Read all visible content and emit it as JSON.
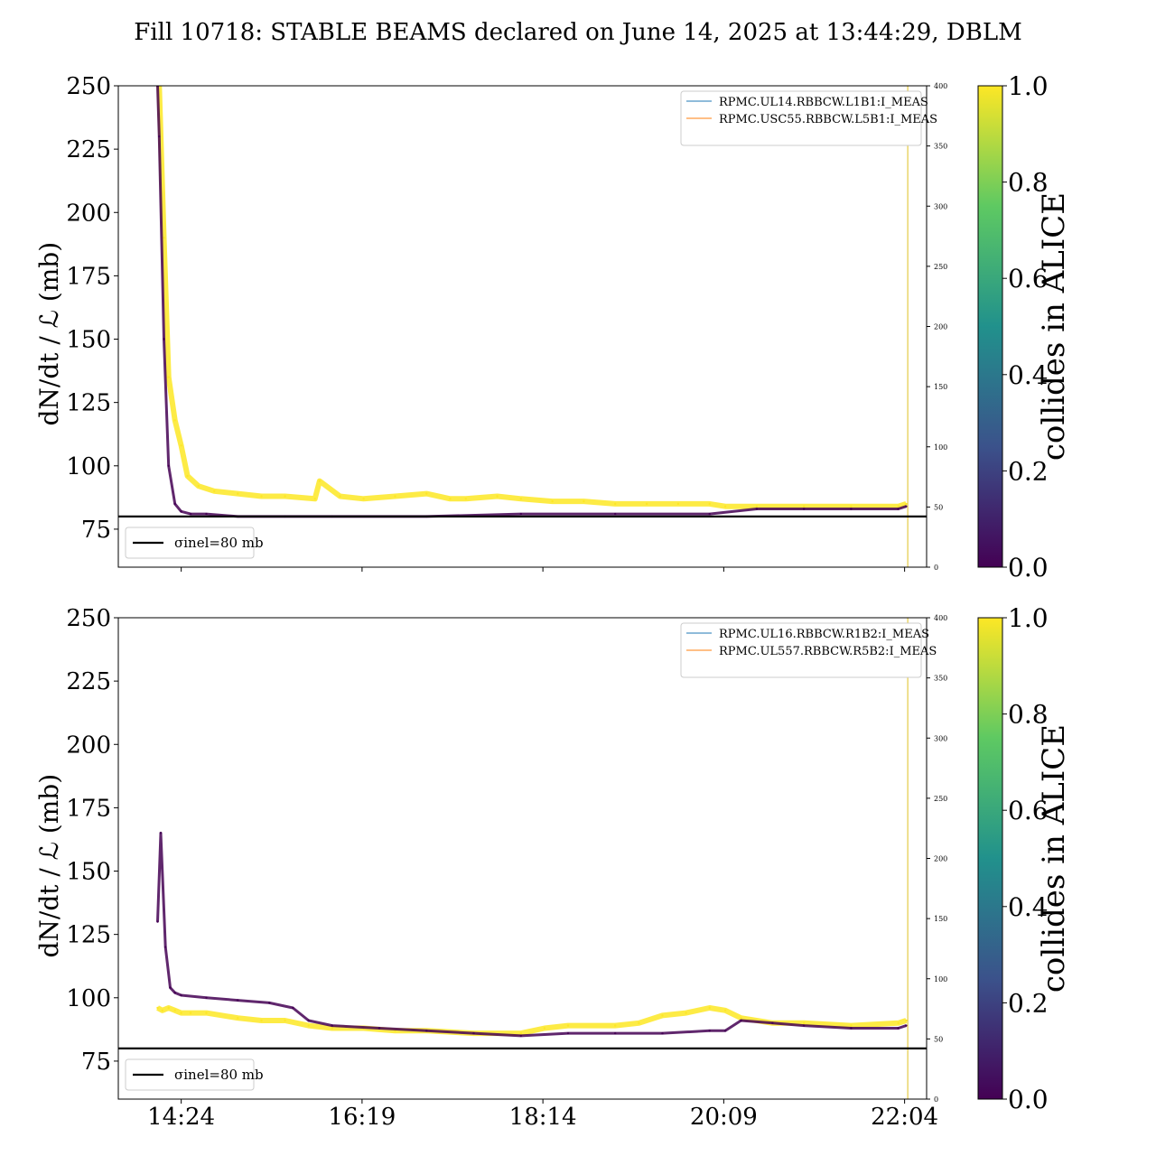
{
  "figure": {
    "title": "Fill 10718: STABLE BEAMS declared on June 14, 2025 at 13:44:29, DBLM"
  },
  "colorbar": {
    "label": "collides in ALICE",
    "ticks": [
      "0.0",
      "0.2",
      "0.4",
      "0.6",
      "0.8",
      "1.0"
    ],
    "colormap_stops": [
      "#440154",
      "#3b528b",
      "#21918c",
      "#5ec962",
      "#fde725"
    ]
  },
  "chart_data": [
    {
      "type": "line",
      "title": "",
      "ylabel": "dN/dt / ℒ (mb)",
      "ylim": [
        60,
        250
      ],
      "yticks": [
        75,
        100,
        125,
        150,
        175,
        200,
        225,
        250
      ],
      "y2lim": [
        0,
        400
      ],
      "y2ticks": [
        0,
        50,
        100,
        150,
        200,
        250,
        300,
        350,
        400
      ],
      "xlim": [
        "13:44",
        "22:18"
      ],
      "xticks": [
        "14:24",
        "16:19",
        "18:14",
        "20:09",
        "22:04"
      ],
      "show_x_ticklabels": false,
      "legend": {
        "position": "top-right",
        "entries": [
          {
            "label": "RPMC.UL14.RBBCW.L1B1:I_MEAS",
            "color": "#1f77b4"
          },
          {
            "label": "RPMC.USC55.RBBCW.L5B1:I_MEAS",
            "color": "#ff7f0e"
          }
        ]
      },
      "reference_line": {
        "label": "σinel=80 mb",
        "value": 80,
        "legend_position": "lower-left"
      },
      "stable_beams_end_marker": "22:06",
      "series": [
        {
          "color_value": 1.0,
          "x": [
            "14:09",
            "14:10",
            "14:13",
            "14:16",
            "14:20",
            "14:24",
            "14:28",
            "14:35",
            "14:45",
            "15:00",
            "15:15",
            "15:30",
            "15:49",
            "15:52",
            "16:05",
            "16:20",
            "16:40",
            "17:00",
            "17:15",
            "17:25",
            "17:45",
            "18:00",
            "18:20",
            "18:40",
            "19:00",
            "19:20",
            "19:40",
            "20:00",
            "20:10",
            "20:30",
            "21:00",
            "21:30",
            "22:00",
            "22:05"
          ],
          "y": [
            250,
            250,
            190,
            135,
            118,
            108,
            96,
            92,
            90,
            89,
            88,
            88,
            87,
            94,
            88,
            87,
            88,
            89,
            87,
            87,
            88,
            87,
            86,
            86,
            85,
            85,
            85,
            85,
            84,
            84,
            84,
            84,
            84,
            85
          ]
        },
        {
          "color_value": 0.0,
          "x": [
            "14:09",
            "14:10",
            "14:13",
            "14:16",
            "14:20",
            "14:24",
            "14:30",
            "14:40",
            "15:00",
            "15:30",
            "16:00",
            "17:00",
            "18:00",
            "19:00",
            "20:00",
            "20:30",
            "21:00",
            "21:30",
            "22:00",
            "22:05"
          ],
          "y": [
            250,
            230,
            150,
            100,
            85,
            82,
            81,
            81,
            80,
            80,
            80,
            80,
            81,
            81,
            81,
            83,
            83,
            83,
            83,
            84
          ]
        }
      ]
    },
    {
      "type": "line",
      "title": "",
      "ylabel": "dN/dt / ℒ (mb)",
      "ylim": [
        60,
        250
      ],
      "yticks": [
        75,
        100,
        125,
        150,
        175,
        200,
        225,
        250
      ],
      "y2lim": [
        0,
        400
      ],
      "y2ticks": [
        0,
        50,
        100,
        150,
        200,
        250,
        300,
        350,
        400
      ],
      "xlim": [
        "13:44",
        "22:18"
      ],
      "xticks": [
        "14:24",
        "16:19",
        "18:14",
        "20:09",
        "22:04"
      ],
      "show_x_ticklabels": true,
      "legend": {
        "position": "top-right",
        "entries": [
          {
            "label": "RPMC.UL16.RBBCW.R1B2:I_MEAS",
            "color": "#1f77b4"
          },
          {
            "label": "RPMC.UL557.RBBCW.R5B2:I_MEAS",
            "color": "#ff7f0e"
          }
        ]
      },
      "reference_line": {
        "label": "σinel=80 mb",
        "value": 80,
        "legend_position": "lower-left"
      },
      "stable_beams_end_marker": "22:06",
      "series": [
        {
          "color_value": 1.0,
          "x": [
            "14:09",
            "14:12",
            "14:16",
            "14:20",
            "14:24",
            "14:30",
            "14:40",
            "15:00",
            "15:15",
            "15:30",
            "15:45",
            "16:00",
            "16:20",
            "16:40",
            "17:00",
            "17:30",
            "18:00",
            "18:15",
            "18:30",
            "19:00",
            "19:15",
            "19:30",
            "19:45",
            "20:00",
            "20:10",
            "20:20",
            "20:40",
            "21:00",
            "21:30",
            "22:00",
            "22:05"
          ],
          "y": [
            96,
            95,
            96,
            95,
            94,
            94,
            94,
            92,
            91,
            91,
            89,
            88,
            88,
            87,
            87,
            86,
            86,
            88,
            89,
            89,
            90,
            93,
            94,
            96,
            95,
            92,
            90,
            90,
            89,
            90,
            91
          ]
        },
        {
          "color_value": 0.0,
          "x": [
            "14:09",
            "14:11",
            "14:14",
            "14:17",
            "14:20",
            "14:24",
            "14:40",
            "15:00",
            "15:20",
            "15:35",
            "15:45",
            "16:00",
            "16:30",
            "17:00",
            "17:30",
            "18:00",
            "18:30",
            "19:00",
            "19:30",
            "20:00",
            "20:10",
            "20:20",
            "20:40",
            "21:00",
            "21:30",
            "22:00",
            "22:05"
          ],
          "y": [
            130,
            165,
            120,
            104,
            102,
            101,
            100,
            99,
            98,
            96,
            91,
            89,
            88,
            87,
            86,
            85,
            86,
            86,
            86,
            87,
            87,
            91,
            90,
            89,
            88,
            88,
            89
          ]
        }
      ]
    }
  ]
}
